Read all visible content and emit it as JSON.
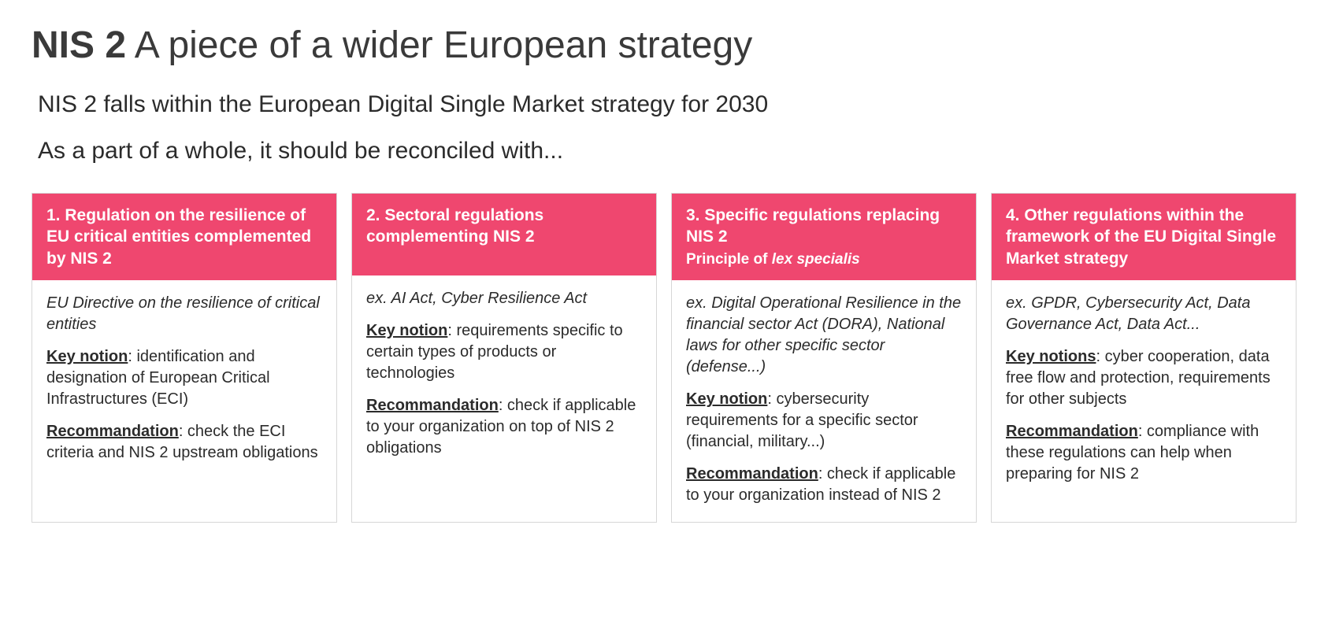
{
  "title_bold": "NIS 2",
  "title_rest": " A piece of a wider European strategy",
  "subtitle1": "NIS 2 falls within the European Digital Single Market strategy for 2030",
  "subtitle2": "As a part of a whole, it should be reconciled with...",
  "accent_color": "#ef476f",
  "border_color": "#d7d7d7",
  "text_color": "#2b2b2b",
  "title_color": "#3a3a3a",
  "background_color": "#ffffff",
  "title_fontsize": 48,
  "subtitle_fontsize": 30,
  "card_header_fontsize": 21,
  "card_body_fontsize": 20,
  "cards": [
    {
      "header_main": "1. Regulation on the resilience of EU critical entities complemented by NIS 2",
      "header_sub": "",
      "example": "EU Directive on the resilience of critical entities",
      "key_label": "Key notion",
      "key_text": ": identification and designation of European Critical Infrastructures (ECI)",
      "rec_label": "Recommandation",
      "rec_text": ": check the ECI criteria and NIS 2 upstream obligations"
    },
    {
      "header_main": "2. Sectoral regulations complementing NIS 2",
      "header_sub": "",
      "example": "ex. AI Act, Cyber Resilience Act",
      "key_label": "Key notion",
      "key_text": ": requirements specific to certain types of products or technologies",
      "rec_label": "Recommandation",
      "rec_text": ": check if applicable to your organization on top of NIS 2 obligations"
    },
    {
      "header_main": "3. Specific regulations replacing NIS 2",
      "header_sub_prefix": "Principle of ",
      "header_sub_italic": "lex specialis",
      "example": "ex. Digital Operational Resilience in the financial sector Act (DORA), National laws for other specific sector (defense...)",
      "key_label": "Key notion",
      "key_text": ": cybersecurity requirements for a specific sector (financial, military...)",
      "rec_label": "Recommandation",
      "rec_text": ": check if applicable to your organization instead of NIS 2"
    },
    {
      "header_main": "4. Other regulations within the framework of the EU Digital Single Market strategy",
      "header_sub": "",
      "example": "ex. GPDR, Cybersecurity Act, Data Governance Act, Data Act...",
      "key_label": "Key notions",
      "key_text": ": cyber cooperation, data free flow and protection, requirements for other subjects",
      "rec_label": "Recommandation",
      "rec_text": ": compliance with these regulations can help when preparing for NIS 2"
    }
  ]
}
